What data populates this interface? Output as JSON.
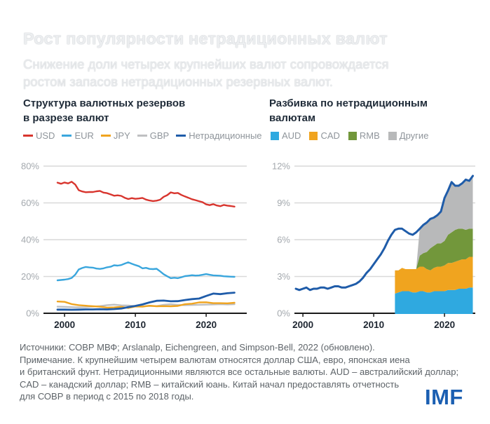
{
  "header": {
    "title": "Рост популярности нетрадиционных валют",
    "subtitle_line1": "Снижение доли четырех крупнейших валют сопровождается",
    "subtitle_line2": "ростом запасов нетрадиционных резервных валют."
  },
  "brand": {
    "logo_text": "IMF",
    "logo_color": "#1b5fb2"
  },
  "chart_data": [
    {
      "type": "line",
      "title_lines": [
        "Структура валютных резервов",
        "в разрезе валют"
      ],
      "xlabel": "",
      "ylabel": "",
      "ylim": [
        0,
        80
      ],
      "grid": "horizontal",
      "legend_position": "top",
      "x_tick_years": [
        2000,
        2010,
        2020
      ],
      "x_ticks": [
        "2000",
        "2010",
        "2020"
      ],
      "y_ticks": [
        {
          "v": 0,
          "label": "0%"
        },
        {
          "v": 20,
          "label": "20%"
        },
        {
          "v": 40,
          "label": "40%"
        },
        {
          "v": 60,
          "label": "60%"
        },
        {
          "v": 80,
          "label": "80%"
        }
      ],
      "x_range": [
        1999,
        2024
      ],
      "series": [
        {
          "name": "GBP",
          "color": "#bfc0c2",
          "start": 1999,
          "step": 1,
          "values": [
            3.6,
            3.5,
            3.3,
            3.2,
            3.3,
            3.6,
            3.9,
            4.4,
            4.7,
            4.3,
            4.2,
            3.9,
            3.8,
            4.0,
            3.9,
            4.6,
            4.9,
            4.5,
            4.4,
            4.5,
            4.6,
            4.7,
            4.8,
            4.9,
            4.8,
            4.9
          ]
        },
        {
          "name": "JPY",
          "color": "#f0a41f",
          "start": 1999,
          "step": 1,
          "values": [
            6.4,
            6.2,
            5.0,
            4.4,
            4.1,
            3.8,
            3.6,
            3.1,
            3.2,
            3.5,
            2.9,
            3.7,
            3.6,
            4.1,
            3.8,
            3.9,
            3.8,
            4.0,
            4.9,
            5.2,
            5.9,
            6.0,
            5.5,
            5.5,
            5.4,
            5.7
          ]
        },
        {
          "name": "EUR",
          "color": "#3aa6dd",
          "start": 1999,
          "step": 0.5,
          "values": [
            17.9,
            18.1,
            18.3,
            18.6,
            19.2,
            21.0,
            23.8,
            24.6,
            25.2,
            24.9,
            24.8,
            24.3,
            24.1,
            24.4,
            25.0,
            25.3,
            26.1,
            25.9,
            26.2,
            27.0,
            27.7,
            26.9,
            26.2,
            25.6,
            24.4,
            24.7,
            24.1,
            24.0,
            24.2,
            22.8,
            21.2,
            20.1,
            19.1,
            19.3,
            19.1,
            19.6,
            20.2,
            20.4,
            20.7,
            20.5,
            20.6,
            20.9,
            21.3,
            20.9,
            20.6,
            20.5,
            20.4,
            20.1,
            20.0,
            19.9,
            19.8
          ]
        },
        {
          "name": "USD",
          "color": "#d8352e",
          "start": 1999,
          "step": 0.5,
          "values": [
            71.0,
            70.4,
            71.1,
            70.6,
            71.5,
            70.0,
            66.9,
            66.2,
            65.8,
            65.9,
            65.9,
            66.3,
            66.5,
            65.6,
            65.3,
            64.6,
            63.9,
            64.1,
            63.8,
            62.8,
            62.1,
            62.6,
            62.2,
            62.4,
            62.7,
            61.8,
            61.3,
            61.0,
            61.2,
            61.7,
            63.3,
            64.2,
            65.7,
            65.2,
            65.4,
            64.3,
            63.5,
            62.8,
            62.0,
            61.5,
            60.9,
            60.4,
            59.2,
            58.8,
            59.3,
            58.6,
            58.2,
            58.9,
            58.5,
            58.3,
            58.0
          ]
        },
        {
          "name": "Нетрадиционные",
          "color": "#1f5ca9",
          "start": 1999,
          "step": 1,
          "width": 2.8,
          "values": [
            2.0,
            2.0,
            1.9,
            2.0,
            2.1,
            2.1,
            2.2,
            2.1,
            2.3,
            2.6,
            3.3,
            4.0,
            4.8,
            5.9,
            6.8,
            6.9,
            6.5,
            6.6,
            7.2,
            7.7,
            8.0,
            9.4,
            10.7,
            10.4,
            10.9,
            11.2
          ]
        }
      ],
      "legend_order": [
        "USD",
        "EUR",
        "JPY",
        "GBP",
        "Нетрадиционные"
      ]
    },
    {
      "type": "area",
      "title_lines": [
        "Разбивка по нетрадиционным",
        "валютам"
      ],
      "xlabel": "",
      "ylabel": "",
      "ylim": [
        0,
        12
      ],
      "grid": "horizontal",
      "legend_position": "top",
      "x_tick_years": [
        2000,
        2010,
        2020
      ],
      "x_ticks": [
        "2000",
        "2010",
        "2020"
      ],
      "y_ticks": [
        {
          "v": 0,
          "label": "0%"
        },
        {
          "v": 3,
          "label": "3%"
        },
        {
          "v": 6,
          "label": "6%"
        },
        {
          "v": 9,
          "label": "9%"
        },
        {
          "v": 12,
          "label": "12%"
        }
      ],
      "x_range": [
        1999,
        2024
      ],
      "areas": [
        {
          "name": "AUD",
          "color": "#2fa9e0",
          "start": 2013,
          "step": 0.5,
          "values": [
            1.6,
            1.7,
            1.8,
            1.8,
            1.8,
            1.7,
            1.7,
            1.8,
            1.8,
            1.7,
            1.7,
            1.8,
            1.8,
            1.8,
            1.8,
            1.9,
            1.9,
            1.9,
            2.0,
            2.0,
            2.0,
            2.1,
            2.1
          ]
        },
        {
          "name": "CAD",
          "color": "#f0a41f",
          "start": 2013,
          "step": 0.5,
          "values": [
            1.9,
            1.8,
            1.9,
            1.8,
            1.8,
            1.9,
            1.9,
            2.0,
            2.0,
            1.9,
            1.8,
            1.9,
            2.0,
            2.0,
            2.1,
            2.2,
            2.2,
            2.3,
            2.3,
            2.4,
            2.4,
            2.5,
            2.5
          ]
        },
        {
          "name": "RMB",
          "color": "#72973b",
          "start": 2013,
          "step": 0.5,
          "values": [
            0,
            0,
            0,
            0,
            0,
            0,
            0,
            0.9,
            1.1,
            1.4,
            1.8,
            1.8,
            1.9,
            1.9,
            2.0,
            2.3,
            2.5,
            2.6,
            2.6,
            2.5,
            2.4,
            2.3,
            2.3
          ]
        },
        {
          "name": "Другие",
          "color": "#b8b9ba",
          "start": 2013,
          "step": 0.5,
          "values": [
            0,
            0,
            0,
            0,
            0,
            0,
            0,
            2.2,
            2.3,
            2.4,
            2.4,
            2.3,
            2.3,
            2.6,
            3.5,
            3.6,
            4.1,
            3.6,
            3.5,
            3.7,
            4.1,
            3.9,
            4.3
          ]
        }
      ],
      "line": {
        "name": "Нетрадиционные",
        "color": "#1f5ca9",
        "start": 1999,
        "step": 0.5,
        "width": 3,
        "values": [
          2.0,
          1.9,
          2.0,
          2.1,
          1.9,
          2.0,
          2.0,
          2.1,
          2.1,
          2.0,
          2.1,
          2.2,
          2.2,
          2.1,
          2.1,
          2.2,
          2.3,
          2.4,
          2.6,
          2.9,
          3.3,
          3.6,
          4.0,
          4.4,
          4.8,
          5.3,
          5.9,
          6.4,
          6.8,
          6.9,
          6.9,
          6.7,
          6.5,
          6.4,
          6.6,
          6.9,
          7.2,
          7.4,
          7.7,
          7.8,
          8.0,
          8.3,
          9.4,
          10.0,
          10.7,
          10.4,
          10.4,
          10.6,
          10.9,
          10.8,
          11.2
        ]
      }
    }
  ],
  "footer": {
    "lines": [
      "Источники: СОВР МВФ; Arslanalp, Eichengreen, and Simpson-Bell, 2022 (обновлено).",
      "Примечание. К крупнейшим четырем валютам относятся доллар США, евро, японская иена",
      "и британский фунт. Нетрадиционными являются все остальные валюты. AUD – австралийский доллар;",
      "CAD – канадский доллар; RMB – китайский юань. Китай начал предоставлять отчетность",
      "для СОВР в период с 2015 по 2018 годы."
    ]
  }
}
